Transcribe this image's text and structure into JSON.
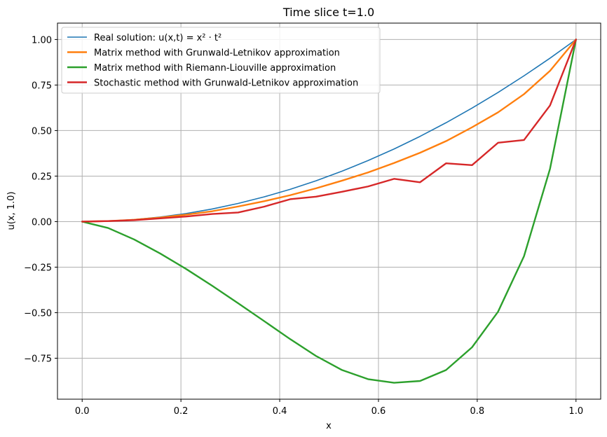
{
  "chart_data": {
    "type": "line",
    "title": "Time slice t=1.0",
    "xlabel": "x",
    "ylabel": "u(x, 1.0)",
    "xlim": [
      -0.05,
      1.05
    ],
    "ylim": [
      -0.975,
      1.09
    ],
    "xticks": [
      0.0,
      0.2,
      0.4,
      0.6,
      0.8,
      1.0
    ],
    "xtick_labels": [
      "0.0",
      "0.2",
      "0.4",
      "0.6",
      "0.8",
      "1.0"
    ],
    "yticks": [
      -0.75,
      -0.5,
      -0.25,
      0.0,
      0.25,
      0.5,
      0.75,
      1.0
    ],
    "ytick_labels": [
      "−0.75",
      "−0.50",
      "−0.25",
      "0.00",
      "0.25",
      "0.50",
      "0.75",
      "1.00"
    ],
    "grid": true,
    "legend_position": "top-left",
    "x": [
      0.0,
      0.0526,
      0.1053,
      0.1579,
      0.2105,
      0.2632,
      0.3158,
      0.3684,
      0.4211,
      0.4737,
      0.5263,
      0.5789,
      0.6316,
      0.6842,
      0.7368,
      0.7895,
      0.8421,
      0.8947,
      0.9474,
      1.0
    ],
    "series": [
      {
        "name": "Real solution: u(x,t) = x² · t²",
        "color": "#1f77b4",
        "width": 1.6,
        "values": [
          0.0,
          0.0028,
          0.0111,
          0.0249,
          0.0443,
          0.0693,
          0.0997,
          0.1357,
          0.1773,
          0.2244,
          0.277,
          0.3352,
          0.3989,
          0.4681,
          0.5429,
          0.6233,
          0.7091,
          0.8006,
          0.8975,
          1.0
        ]
      },
      {
        "name": "Matrix method with Grunwald-Letnikov approximation",
        "color": "#ff7f0e",
        "width": 2.4,
        "values": [
          0.0,
          0.003,
          0.01,
          0.022,
          0.038,
          0.057,
          0.083,
          0.112,
          0.145,
          0.183,
          0.225,
          0.27,
          0.322,
          0.378,
          0.442,
          0.518,
          0.6,
          0.7,
          0.828,
          1.0
        ]
      },
      {
        "name": "Matrix method with Riemann-Liouville approximation",
        "color": "#2ca02c",
        "width": 2.4,
        "values": [
          0.0,
          -0.035,
          -0.098,
          -0.175,
          -0.26,
          -0.352,
          -0.448,
          -0.546,
          -0.645,
          -0.738,
          -0.815,
          -0.865,
          -0.885,
          -0.875,
          -0.815,
          -0.69,
          -0.495,
          -0.19,
          0.29,
          1.0
        ]
      },
      {
        "name": "Stochastic method with Grunwald-Letnikov approximation",
        "color": "#d62728",
        "width": 2.4,
        "values": [
          0.0,
          0.003,
          0.008,
          0.018,
          0.028,
          0.042,
          0.05,
          0.082,
          0.123,
          0.137,
          0.164,
          0.193,
          0.235,
          0.216,
          0.32,
          0.31,
          0.433,
          0.448,
          0.638,
          1.0
        ]
      }
    ]
  }
}
